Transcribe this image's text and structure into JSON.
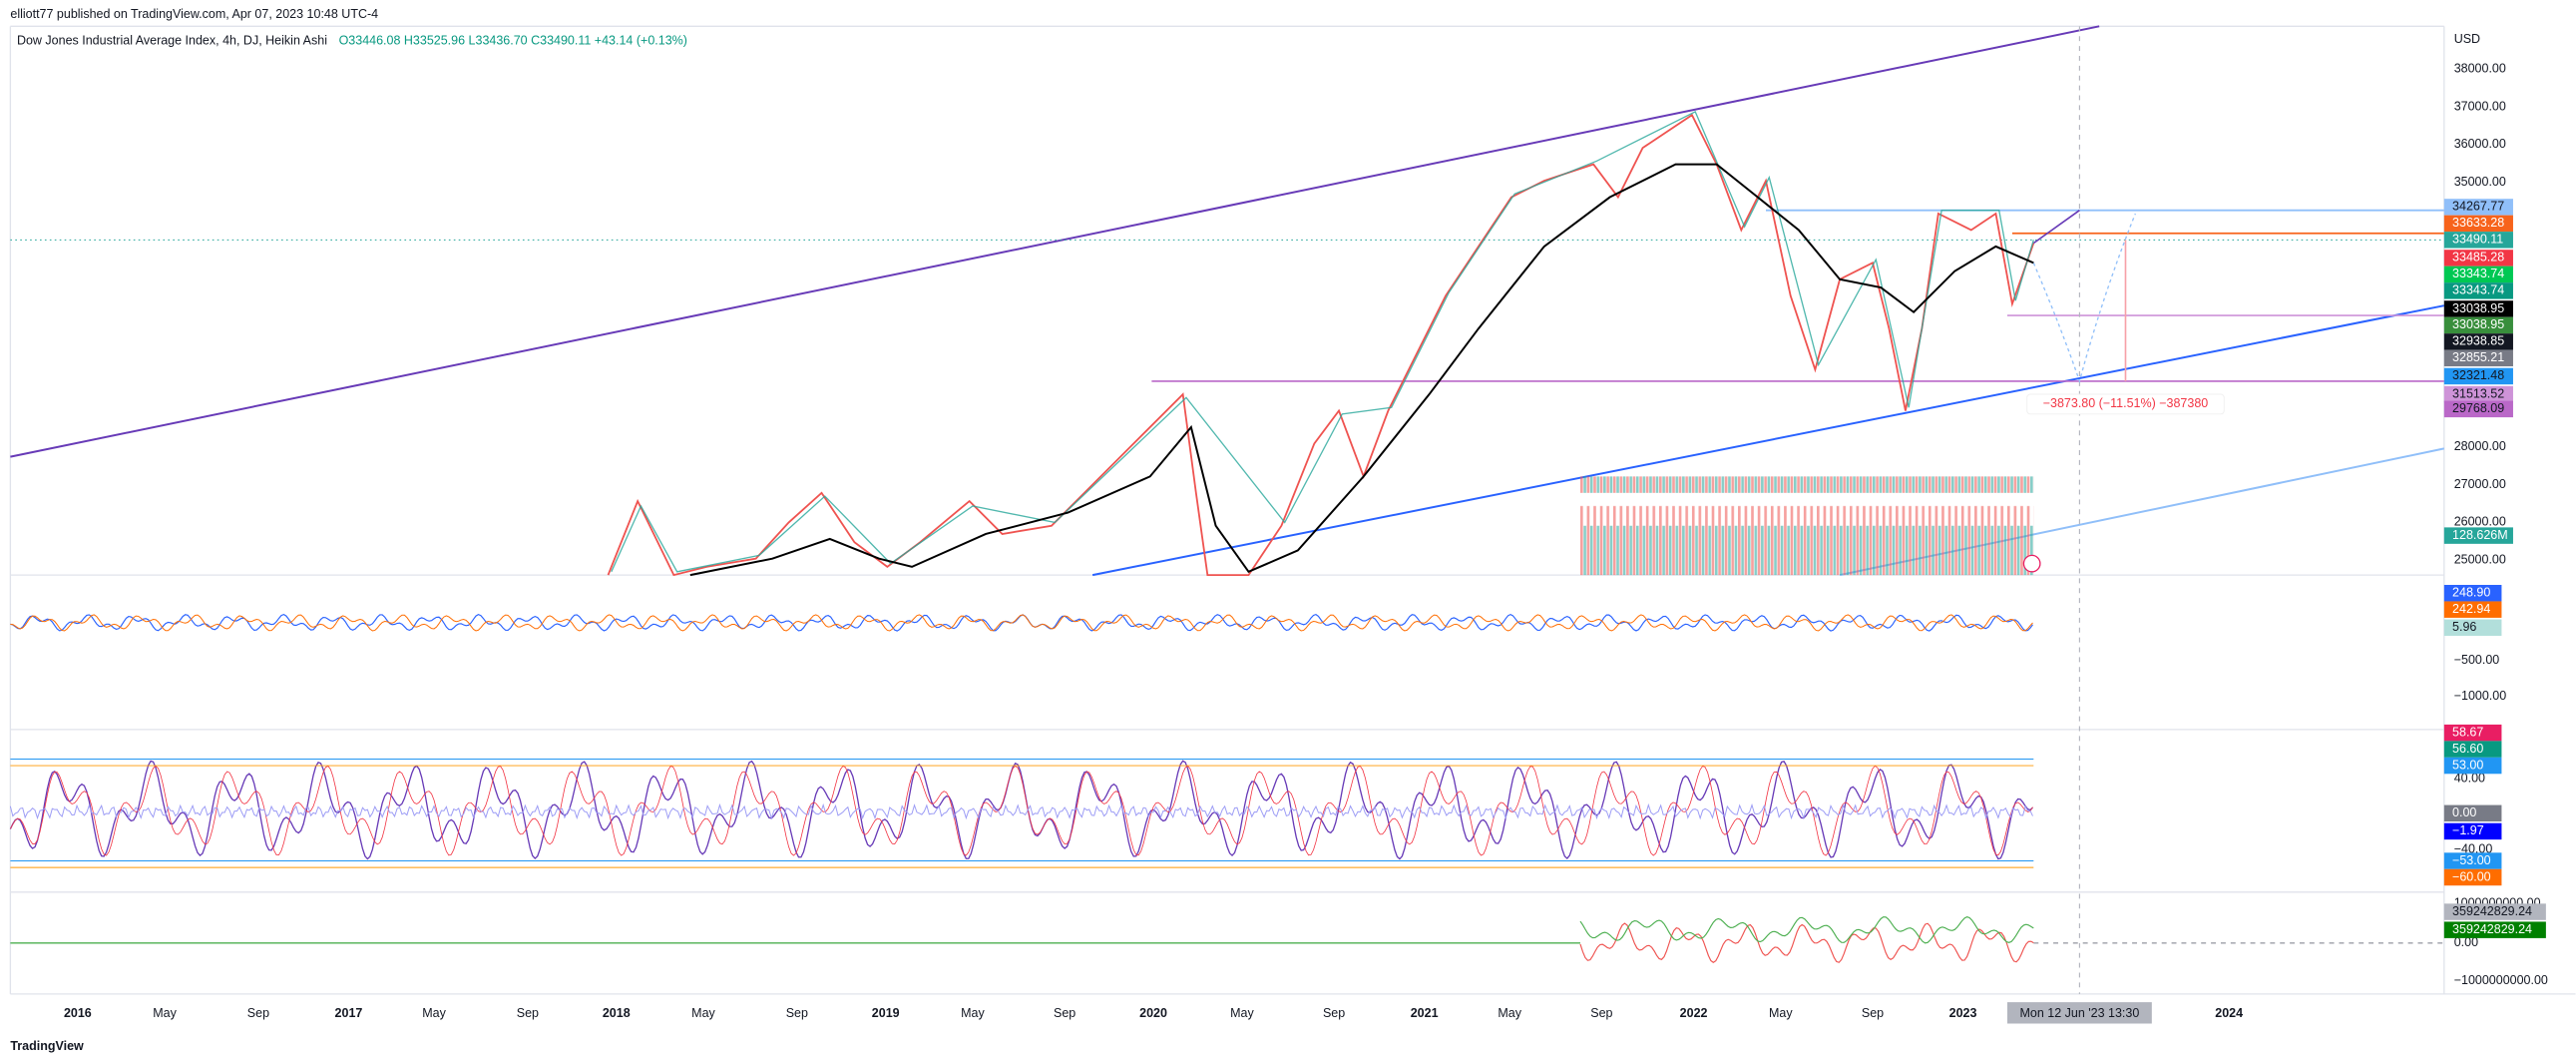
{
  "header": {
    "byline": "elliott77 published on TradingView.com, Apr 07, 2023 10:48 UTC-4",
    "symbol": "Dow Jones Industrial Average Index, 4h, DJ, Heikin Ashi",
    "ohlc": "O33446.08 H33525.96 L33436.70 C33490.11 +43.14 (+0.13%)"
  },
  "price_axis": {
    "currency": "USD",
    "labels": [
      "38000.00",
      "37000.00",
      "36000.00",
      "35000.00",
      "28000.00",
      "27000.00",
      "26000.00",
      "25000.00"
    ]
  },
  "price_tags": [
    {
      "label": "34267.77",
      "color": "#90bff9",
      "text": "#131722"
    },
    {
      "label": "33633.28",
      "color": "#f7631b",
      "text": "#ffffff"
    },
    {
      "label": "33490.11",
      "color": "#26a69a",
      "text": "#ffffff"
    },
    {
      "label": "33485.28",
      "color": "#f23645",
      "text": "#ffffff"
    },
    {
      "label": "33343.74",
      "color": "#00c853",
      "text": "#ffffff"
    },
    {
      "label": "33343.74",
      "color": "#089981",
      "text": "#ffffff"
    },
    {
      "label": "33038.95",
      "color": "#000000",
      "text": "#ffffff"
    },
    {
      "label": "33038.95",
      "color": "#388e3c",
      "text": "#ffffff"
    },
    {
      "label": "32938.85",
      "color": "#131722",
      "text": "#ffffff"
    },
    {
      "label": "32855.21",
      "color": "#787b86",
      "text": "#ffffff"
    },
    {
      "label": "32321.48",
      "color": "#2196f3",
      "text": "#131722"
    },
    {
      "label": "31513.52",
      "color": "#ce93d8",
      "text": "#131722"
    },
    {
      "label": "29768.09",
      "color": "#ba68c8",
      "text": "#131722"
    },
    {
      "label": "128.626M",
      "color": "#26a69a",
      "text": "#ffffff"
    }
  ],
  "indicator_1": {
    "tags": [
      {
        "label": "248.90",
        "color": "#2962ff",
        "text": "#ffffff"
      },
      {
        "label": "242.94",
        "color": "#ff6d00",
        "text": "#ffffff"
      },
      {
        "label": "5.96",
        "color": "#b2dfdb",
        "text": "#131722"
      }
    ],
    "labels": [
      "−500.00",
      "−1000.00"
    ]
  },
  "indicator_2": {
    "tags": [
      {
        "label": "58.67",
        "color": "#e91e63",
        "text": "#ffffff"
      },
      {
        "label": "56.60",
        "color": "#089981",
        "text": "#ffffff"
      },
      {
        "label": "53.00",
        "color": "#2196f3",
        "text": "#ffffff"
      },
      {
        "label": "0.00",
        "color": "#787b86",
        "text": "#ffffff"
      },
      {
        "label": "−1.97",
        "color": "#0000ff",
        "text": "#ffffff"
      },
      {
        "label": "−53.00",
        "color": "#2196f3",
        "text": "#ffffff"
      },
      {
        "label": "−60.00",
        "color": "#ff6d00",
        "text": "#ffffff"
      }
    ],
    "labels": [
      "40.00",
      "−40.00"
    ]
  },
  "indicator_3": {
    "tags": [
      {
        "label": "359242829.24",
        "color": "#b2b5be",
        "text": "#131722"
      },
      {
        "label": "359242829.24",
        "color": "#008000",
        "text": "#ffffff"
      }
    ],
    "labels": [
      "1000000000.00",
      "0.00",
      "−1000000000.00"
    ]
  },
  "time_axis": {
    "labels": [
      "2016",
      "May",
      "Sep",
      "2017",
      "May",
      "Sep",
      "2018",
      "May",
      "Sep",
      "2019",
      "May",
      "Sep",
      "2020",
      "May",
      "Sep",
      "2021",
      "May",
      "Sep",
      "2022",
      "May",
      "Sep",
      "2023",
      "2024"
    ],
    "cursor": "Mon 12 Jun '23  13:30"
  },
  "measure": "−3873.80 (−11.51%) −387380",
  "footer": "TradingView"
}
